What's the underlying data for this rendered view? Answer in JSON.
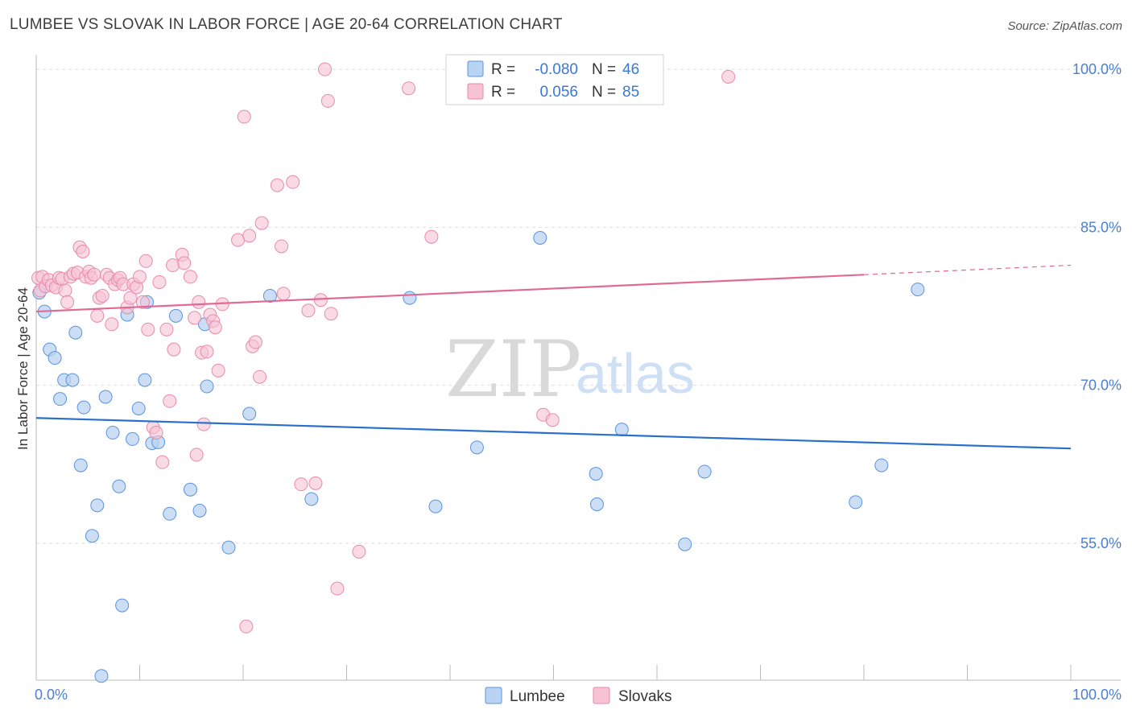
{
  "title": "LUMBEE VS SLOVAK IN LABOR FORCE | AGE 20-64 CORRELATION CHART",
  "source": "Source: ZipAtlas.com",
  "watermark": {
    "zip": "ZIP",
    "atlas": "atlas"
  },
  "colors": {
    "lumbee_fill": "#b9d3f2",
    "lumbee_stroke": "#5b93dc",
    "lumbee_line": "#2a6fcb",
    "slovak_fill": "#f7c3d4",
    "slovak_stroke": "#e88aa9",
    "slovak_line": "#e06a95",
    "grid": "#dddddd",
    "tick_text": "#4a7fd4"
  },
  "legend_box": {
    "r_label": "R =",
    "n_label": "N =",
    "rows": [
      {
        "series": "Lumbee",
        "r": "-0.080",
        "n": "46"
      },
      {
        "series": "Slovaks",
        "r": "0.056",
        "n": "85"
      }
    ]
  },
  "bottom_legend": [
    "Lumbee",
    "Slovaks"
  ],
  "chart_data": {
    "type": "scatter",
    "title": "LUMBEE VS SLOVAK IN LABOR FORCE | AGE 20-64 CORRELATION CHART",
    "xlabel": "",
    "ylabel": "In Labor Force | Age 20-64",
    "xlim": [
      0,
      100
    ],
    "ylim": [
      42,
      102
    ],
    "x_tick_labels": [
      "0.0%",
      "100.0%"
    ],
    "y_ticks": [
      55,
      70,
      85,
      100
    ],
    "y_tick_labels": [
      "55.0%",
      "70.0%",
      "85.0%",
      "100.0%"
    ],
    "series": [
      {
        "name": "Lumbee",
        "r": -0.08,
        "n": 46,
        "trend": {
          "x": [
            0,
            100
          ],
          "y": [
            66.9,
            64.0
          ]
        },
        "points": [
          [
            0.3,
            78.8
          ],
          [
            0.8,
            77.0
          ],
          [
            1.3,
            73.4
          ],
          [
            1.8,
            72.6
          ],
          [
            2.3,
            68.7
          ],
          [
            2.7,
            70.5
          ],
          [
            3.5,
            70.5
          ],
          [
            3.8,
            75.0
          ],
          [
            4.3,
            62.4
          ],
          [
            4.6,
            67.9
          ],
          [
            5.4,
            55.7
          ],
          [
            5.9,
            58.6
          ],
          [
            6.3,
            42.4
          ],
          [
            6.7,
            68.9
          ],
          [
            7.4,
            65.5
          ],
          [
            8.0,
            60.4
          ],
          [
            8.3,
            49.1
          ],
          [
            8.8,
            76.7
          ],
          [
            9.3,
            64.9
          ],
          [
            9.9,
            67.8
          ],
          [
            10.5,
            70.5
          ],
          [
            10.7,
            77.9
          ],
          [
            11.2,
            64.5
          ],
          [
            11.8,
            64.6
          ],
          [
            12.9,
            57.8
          ],
          [
            13.5,
            76.6
          ],
          [
            14.9,
            60.1
          ],
          [
            15.8,
            58.1
          ],
          [
            16.3,
            75.8
          ],
          [
            16.5,
            69.9
          ],
          [
            18.6,
            54.6
          ],
          [
            20.6,
            67.3
          ],
          [
            22.6,
            78.5
          ],
          [
            26.6,
            59.2
          ],
          [
            36.1,
            78.3
          ],
          [
            38.6,
            58.5
          ],
          [
            42.6,
            64.1
          ],
          [
            48.7,
            84.0
          ],
          [
            54.1,
            61.6
          ],
          [
            54.2,
            58.7
          ],
          [
            56.6,
            65.8
          ],
          [
            62.7,
            54.9
          ],
          [
            64.6,
            61.8
          ],
          [
            79.2,
            58.9
          ],
          [
            81.7,
            62.4
          ],
          [
            85.2,
            79.1
          ]
        ]
      },
      {
        "name": "Slovaks",
        "r": 0.056,
        "n": 85,
        "trend": {
          "x": [
            0,
            80
          ],
          "y": [
            77.0,
            80.5
          ]
        },
        "trend_dashed": {
          "x": [
            80,
            100
          ],
          "y": [
            80.5,
            81.4
          ]
        },
        "points": [
          [
            0.2,
            80.2
          ],
          [
            0.4,
            79.0
          ],
          [
            0.6,
            80.3
          ],
          [
            0.9,
            79.4
          ],
          [
            1.2,
            80.0
          ],
          [
            1.5,
            79.5
          ],
          [
            1.9,
            79.3
          ],
          [
            2.2,
            80.2
          ],
          [
            2.5,
            80.1
          ],
          [
            2.8,
            79.0
          ],
          [
            3.0,
            77.9
          ],
          [
            3.3,
            80.3
          ],
          [
            3.6,
            80.6
          ],
          [
            4.0,
            80.7
          ],
          [
            4.2,
            83.1
          ],
          [
            4.5,
            82.7
          ],
          [
            4.8,
            80.3
          ],
          [
            5.1,
            80.8
          ],
          [
            5.3,
            80.2
          ],
          [
            5.6,
            80.5
          ],
          [
            5.9,
            76.6
          ],
          [
            6.1,
            78.3
          ],
          [
            6.4,
            78.5
          ],
          [
            6.8,
            80.5
          ],
          [
            7.1,
            80.2
          ],
          [
            7.3,
            75.8
          ],
          [
            7.6,
            79.6
          ],
          [
            7.9,
            80.0
          ],
          [
            8.1,
            80.2
          ],
          [
            8.4,
            79.6
          ],
          [
            8.8,
            77.4
          ],
          [
            9.1,
            78.3
          ],
          [
            9.4,
            79.6
          ],
          [
            9.7,
            79.3
          ],
          [
            10.0,
            80.3
          ],
          [
            10.3,
            77.9
          ],
          [
            10.6,
            81.8
          ],
          [
            10.8,
            75.3
          ],
          [
            11.3,
            66.0
          ],
          [
            11.6,
            65.5
          ],
          [
            11.9,
            79.8
          ],
          [
            12.2,
            62.7
          ],
          [
            12.6,
            75.3
          ],
          [
            12.9,
            68.5
          ],
          [
            13.2,
            81.4
          ],
          [
            13.3,
            73.4
          ],
          [
            14.1,
            82.4
          ],
          [
            14.3,
            81.6
          ],
          [
            14.9,
            80.3
          ],
          [
            15.3,
            76.4
          ],
          [
            15.5,
            63.4
          ],
          [
            15.7,
            77.9
          ],
          [
            16.0,
            73.1
          ],
          [
            16.2,
            66.3
          ],
          [
            16.5,
            73.2
          ],
          [
            16.8,
            76.7
          ],
          [
            17.1,
            76.1
          ],
          [
            17.3,
            75.5
          ],
          [
            17.6,
            71.4
          ],
          [
            18.0,
            77.7
          ],
          [
            19.5,
            83.8
          ],
          [
            20.1,
            95.5
          ],
          [
            20.6,
            84.2
          ],
          [
            20.9,
            73.7
          ],
          [
            21.2,
            74.1
          ],
          [
            21.6,
            70.8
          ],
          [
            21.8,
            85.4
          ],
          [
            23.3,
            89.0
          ],
          [
            23.7,
            83.2
          ],
          [
            23.9,
            78.7
          ],
          [
            24.8,
            89.3
          ],
          [
            25.6,
            60.6
          ],
          [
            26.3,
            77.1
          ],
          [
            27.0,
            60.7
          ],
          [
            27.5,
            78.1
          ],
          [
            27.9,
            100.0
          ],
          [
            28.2,
            97.0
          ],
          [
            28.5,
            76.8
          ],
          [
            29.1,
            50.7
          ],
          [
            31.2,
            54.2
          ],
          [
            20.3,
            47.1
          ],
          [
            36.0,
            98.2
          ],
          [
            38.2,
            84.1
          ],
          [
            49.0,
            67.2
          ],
          [
            49.9,
            66.7
          ],
          [
            66.9,
            99.3
          ]
        ]
      }
    ],
    "legend": "top-center"
  }
}
